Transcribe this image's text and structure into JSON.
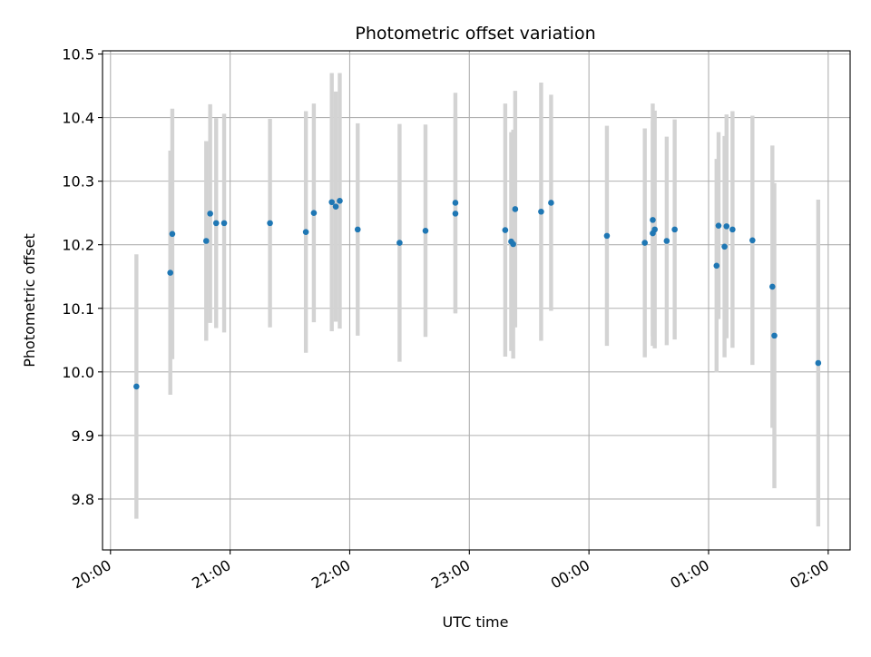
{
  "chart_data": {
    "type": "scatter",
    "title": "Photometric offset variation",
    "xlabel": "UTC time",
    "ylabel": "Photometric offset",
    "x_unit": "UTC hours after 20:00",
    "xlim": [
      "19:56",
      "02:11"
    ],
    "ylim": [
      9.72,
      10.505
    ],
    "xticks": [
      "20:00",
      "21:00",
      "22:00",
      "23:00",
      "00:00",
      "01:00",
      "02:00"
    ],
    "yticks": [
      "9.8",
      "9.9",
      "10.0",
      "10.1",
      "10.2",
      "10.3",
      "10.4",
      "10.5"
    ],
    "grid": true,
    "error_bars": "symmetric",
    "colors": {
      "points": "#1f77b4",
      "error_bars": "#d3d3d3",
      "grid": "#b0b0b0"
    },
    "points": [
      {
        "x": "20:13",
        "y": 9.977,
        "err": 0.208
      },
      {
        "x": "20:30",
        "y": 10.156,
        "err": 0.192
      },
      {
        "x": "20:31",
        "y": 10.217,
        "err": 0.197
      },
      {
        "x": "20:48",
        "y": 10.206,
        "err": 0.157
      },
      {
        "x": "20:50",
        "y": 10.249,
        "err": 0.172
      },
      {
        "x": "20:53",
        "y": 10.234,
        "err": 0.165
      },
      {
        "x": "20:57",
        "y": 10.234,
        "err": 0.172
      },
      {
        "x": "21:20",
        "y": 10.234,
        "err": 0.164
      },
      {
        "x": "21:38",
        "y": 10.22,
        "err": 0.19
      },
      {
        "x": "21:42",
        "y": 10.25,
        "err": 0.172
      },
      {
        "x": "21:51",
        "y": 10.267,
        "err": 0.203
      },
      {
        "x": "21:53",
        "y": 10.26,
        "err": 0.181
      },
      {
        "x": "21:55",
        "y": 10.269,
        "err": 0.201
      },
      {
        "x": "22:04",
        "y": 10.224,
        "err": 0.167
      },
      {
        "x": "22:25",
        "y": 10.203,
        "err": 0.187
      },
      {
        "x": "22:38",
        "y": 10.222,
        "err": 0.167
      },
      {
        "x": "22:53",
        "y": 10.249,
        "err": 0.157
      },
      {
        "x": "22:53",
        "y": 10.266,
        "err": 0.173
      },
      {
        "x": "23:18",
        "y": 10.223,
        "err": 0.199
      },
      {
        "x": "23:21",
        "y": 10.205,
        "err": 0.172
      },
      {
        "x": "23:22",
        "y": 10.201,
        "err": 0.18
      },
      {
        "x": "23:23",
        "y": 10.256,
        "err": 0.186
      },
      {
        "x": "23:36",
        "y": 10.252,
        "err": 0.203
      },
      {
        "x": "23:41",
        "y": 10.266,
        "err": 0.17
      },
      {
        "x": "00:09",
        "y": 10.214,
        "err": 0.173
      },
      {
        "x": "00:28",
        "y": 10.203,
        "err": 0.18
      },
      {
        "x": "00:32",
        "y": 10.239,
        "err": 0.183
      },
      {
        "x": "00:32",
        "y": 10.218,
        "err": 0.177
      },
      {
        "x": "00:33",
        "y": 10.224,
        "err": 0.187
      },
      {
        "x": "00:39",
        "y": 10.206,
        "err": 0.164
      },
      {
        "x": "00:43",
        "y": 10.224,
        "err": 0.173
      },
      {
        "x": "01:04",
        "y": 10.167,
        "err": 0.168
      },
      {
        "x": "01:05",
        "y": 10.23,
        "err": 0.147
      },
      {
        "x": "01:08",
        "y": 10.197,
        "err": 0.174
      },
      {
        "x": "01:09",
        "y": 10.229,
        "err": 0.176
      },
      {
        "x": "01:12",
        "y": 10.224,
        "err": 0.186
      },
      {
        "x": "01:22",
        "y": 10.207,
        "err": 0.196
      },
      {
        "x": "01:32",
        "y": 10.134,
        "err": 0.222
      },
      {
        "x": "01:33",
        "y": 10.057,
        "err": 0.24
      },
      {
        "x": "01:55",
        "y": 10.014,
        "err": 0.257
      }
    ]
  }
}
